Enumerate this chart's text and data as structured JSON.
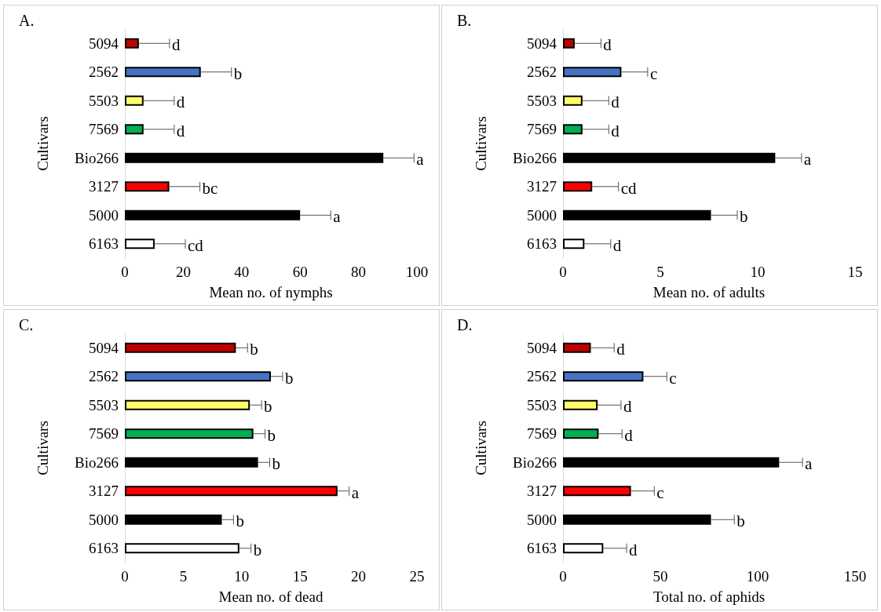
{
  "chart_data": [
    {
      "type": "bar",
      "orientation": "horizontal",
      "title": "A.",
      "xlabel": "Mean no. of nymphs",
      "ylabel": "Cultivars",
      "categories": [
        "5094",
        "2562",
        "5503",
        "7569",
        "Bio266",
        "3127",
        "5000",
        "6163"
      ],
      "values": [
        4.8,
        26,
        6.4,
        6.4,
        88.5,
        15.2,
        60,
        10.2
      ],
      "errors": [
        [
          4.8,
          15.3
        ],
        [
          26,
          36.5
        ],
        [
          6.4,
          16.9
        ],
        [
          6.4,
          16.9
        ],
        [
          88.5,
          99
        ],
        [
          15.2,
          25.7
        ],
        [
          60,
          70.5
        ],
        [
          10.2,
          20.7
        ]
      ],
      "value_labels": [
        "d",
        "b",
        "d",
        "d",
        "a",
        "bc",
        "a",
        "cd"
      ],
      "colors": [
        "#c00000",
        "#4472c4",
        "#ffff66",
        "#00b050",
        "#000000",
        "#ff0000",
        "#000000",
        "#ffffff"
      ],
      "xlim": [
        0,
        100
      ],
      "xticks": [
        0,
        20,
        40,
        60,
        80,
        100
      ],
      "grid": false
    },
    {
      "type": "bar",
      "orientation": "horizontal",
      "title": "B.",
      "xlabel": "Mean no. of adults",
      "ylabel": "Cultivars",
      "categories": [
        "5094",
        "2562",
        "5503",
        "7569",
        "Bio266",
        "3127",
        "5000",
        "6163"
      ],
      "values": [
        0.6,
        3.0,
        1.0,
        1.0,
        10.9,
        1.5,
        7.6,
        1.1
      ],
      "errors": [
        [
          0.6,
          1.95
        ],
        [
          3.0,
          4.35
        ],
        [
          1.0,
          2.35
        ],
        [
          1.0,
          2.35
        ],
        [
          10.9,
          12.25
        ],
        [
          1.5,
          2.85
        ],
        [
          7.6,
          8.95
        ],
        [
          1.1,
          2.45
        ]
      ],
      "value_labels": [
        "d",
        "c",
        "d",
        "d",
        "a",
        "cd",
        "b",
        "d"
      ],
      "colors": [
        "#c00000",
        "#4472c4",
        "#ffff66",
        "#00b050",
        "#000000",
        "#ff0000",
        "#000000",
        "#ffffff"
      ],
      "xlim": [
        0,
        15
      ],
      "xticks": [
        0,
        5,
        10,
        15
      ],
      "grid": false
    },
    {
      "type": "bar",
      "orientation": "horizontal",
      "title": "C.",
      "xlabel": "Mean no. of dead",
      "ylabel": "Cultivars",
      "categories": [
        "5094",
        "2562",
        "5503",
        "7569",
        "Bio266",
        "3127",
        "5000",
        "6163"
      ],
      "values": [
        9.5,
        12.5,
        10.7,
        11.0,
        11.4,
        18.2,
        8.3,
        9.8
      ],
      "errors": [
        [
          9.5,
          10.5
        ],
        [
          12.5,
          13.5
        ],
        [
          10.7,
          11.7
        ],
        [
          11.0,
          12.0
        ],
        [
          11.4,
          12.4
        ],
        [
          18.2,
          19.2
        ],
        [
          8.3,
          9.3
        ],
        [
          9.8,
          10.8
        ]
      ],
      "value_labels": [
        "b",
        "b",
        "b",
        "b",
        "b",
        "a",
        "b",
        "b"
      ],
      "colors": [
        "#c00000",
        "#4472c4",
        "#ffff66",
        "#00b050",
        "#000000",
        "#ff0000",
        "#000000",
        "#ffffff"
      ],
      "xlim": [
        0,
        25
      ],
      "xticks": [
        0,
        5,
        10,
        15,
        20,
        25
      ],
      "grid": false
    },
    {
      "type": "bar",
      "orientation": "horizontal",
      "title": "D.",
      "xlabel": "Total no. of aphids",
      "ylabel": "Cultivars",
      "categories": [
        "5094",
        "2562",
        "5503",
        "7569",
        "Bio266",
        "3127",
        "5000",
        "6163"
      ],
      "values": [
        14.3,
        41.3,
        17.8,
        18.3,
        111,
        34.9,
        76,
        20.7
      ],
      "errors": [
        [
          14.3,
          26.3
        ],
        [
          41.3,
          53.3
        ],
        [
          17.8,
          29.8
        ],
        [
          18.3,
          30.3
        ],
        [
          111,
          123
        ],
        [
          34.9,
          46.9
        ],
        [
          76,
          88
        ],
        [
          20.7,
          32.7
        ]
      ],
      "value_labels": [
        "d",
        "c",
        "d",
        "d",
        "a",
        "c",
        "b",
        "d"
      ],
      "colors": [
        "#c00000",
        "#4472c4",
        "#ffff66",
        "#00b050",
        "#000000",
        "#ff0000",
        "#000000",
        "#ffffff"
      ],
      "xlim": [
        0,
        150
      ],
      "xticks": [
        0,
        50,
        100,
        150
      ],
      "grid": false
    }
  ]
}
